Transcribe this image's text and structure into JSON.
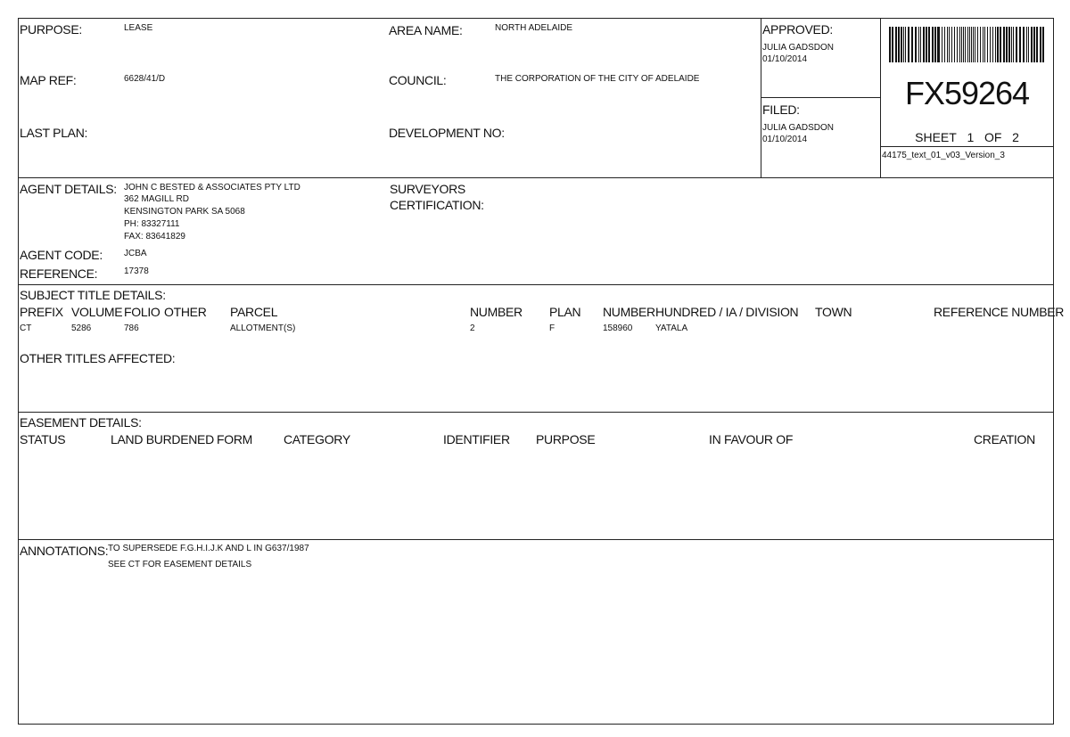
{
  "header": {
    "purpose_label": "PURPOSE:",
    "purpose": "LEASE",
    "map_ref_label": "MAP REF:",
    "map_ref": "6628/41/D",
    "last_plan_label": "LAST PLAN:",
    "area_name_label": "AREA NAME:",
    "area_name": "NORTH ADELAIDE",
    "council_label": "COUNCIL:",
    "council": "THE CORPORATION OF THE CITY OF ADELAIDE",
    "development_no_label": "DEVELOPMENT NO:",
    "approved_label": "APPROVED:",
    "approved_by": "JULIA GADSDON",
    "approved_date": "01/10/2014",
    "filed_label": "FILED:",
    "filed_by": "JULIA GADSDON",
    "filed_date": "01/10/2014",
    "plan_number": "FX59264",
    "sheet_label": "SHEET",
    "sheet": "1",
    "of_label": "OF",
    "sheets": "2",
    "version": "44175_text_01_v03_Version_3"
  },
  "agent": {
    "details_label": "AGENT DETAILS:",
    "lines": [
      "JOHN C BESTED & ASSOCIATES PTY LTD",
      "362 MAGILL RD",
      "KENSINGTON PARK SA 5068",
      "PH: 83327111",
      "FAX: 83641829"
    ],
    "code_label": "AGENT CODE:",
    "code": "JCBA",
    "reference_label": "REFERENCE:",
    "reference": "17378",
    "surveyors_label_1": "SURVEYORS",
    "surveyors_label_2": "CERTIFICATION:"
  },
  "subject": {
    "title": "SUBJECT TITLE DETAILS:",
    "columns": [
      "PREFIX",
      "VOLUME",
      "FOLIO",
      "OTHER",
      "PARCEL",
      "NUMBER",
      "PLAN",
      "NUMBER",
      "HUNDRED / IA / DIVISION",
      "TOWN",
      "REFERENCE NUMBER"
    ],
    "row": [
      "CT",
      "5286",
      "786",
      "",
      "ALLOTMENT(S)",
      "2",
      "F",
      "158960",
      "YATALA",
      "",
      ""
    ],
    "other_titles_label": "OTHER TITLES AFFECTED:"
  },
  "easement": {
    "title": "EASEMENT DETAILS:",
    "columns": [
      "STATUS",
      "LAND BURDENED",
      "FORM",
      "CATEGORY",
      "IDENTIFIER",
      "PURPOSE",
      "IN FAVOUR OF",
      "CREATION"
    ]
  },
  "annotations": {
    "label": "ANNOTATIONS:",
    "lines": [
      "TO SUPERSEDE F.G.H.I.J.K AND L IN G637/1987",
      "SEE CT FOR EASEMENT DETAILS"
    ]
  }
}
